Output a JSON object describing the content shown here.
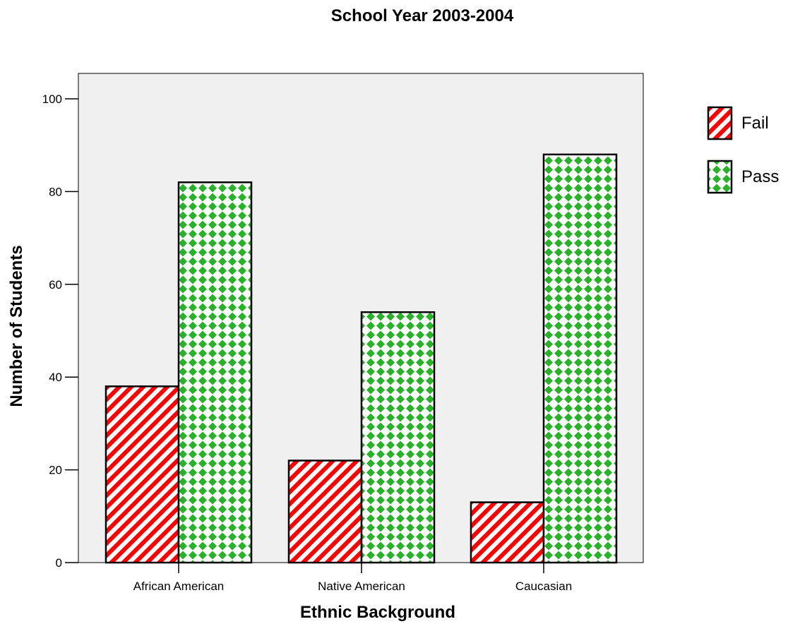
{
  "chart_data": {
    "type": "bar",
    "title": "School Year 2003-2004",
    "xlabel": "Ethnic Background",
    "ylabel": "Number of Students",
    "categories": [
      "African American",
      "Native American",
      "Caucasian"
    ],
    "series": [
      {
        "name": "Fail",
        "values": [
          38,
          22,
          13
        ],
        "color": "#ff0000",
        "pattern": "diagonal-stripes"
      },
      {
        "name": "Pass",
        "values": [
          82,
          54,
          88
        ],
        "color": "#22b022",
        "pattern": "diamond-checker"
      }
    ],
    "ylim": [
      0,
      100
    ],
    "yticks": [
      0,
      20,
      40,
      60,
      80,
      100
    ],
    "yticklabels": [
      "0",
      "20",
      "40",
      "60",
      "80",
      "100"
    ],
    "grid": false,
    "legend_position": "right",
    "plot_background": "#f0f0f0"
  }
}
